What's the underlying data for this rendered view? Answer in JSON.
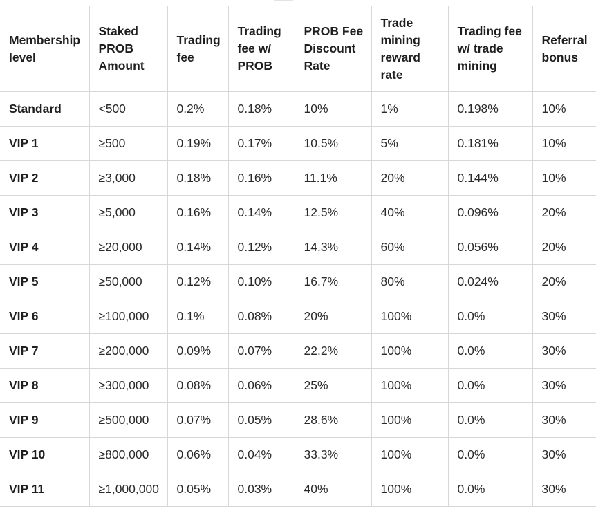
{
  "table": {
    "headers": [
      "Membership level",
      "Staked PROB Amount",
      "Trading fee",
      "Trading fee w/ PROB",
      "PROB Fee Discount Rate",
      "Trade mining reward rate",
      "Trading fee w/ trade mining",
      "Referral bonus"
    ],
    "rows": [
      [
        "Standard",
        "<500",
        "0.2%",
        "0.18%",
        "10%",
        "1%",
        "0.198%",
        "10%"
      ],
      [
        "VIP 1",
        "≥500",
        "0.19%",
        "0.17%",
        "10.5%",
        "5%",
        "0.181%",
        "10%"
      ],
      [
        "VIP 2",
        "≥3,000",
        "0.18%",
        "0.16%",
        "11.1%",
        "20%",
        "0.144%",
        "10%"
      ],
      [
        "VIP 3",
        "≥5,000",
        "0.16%",
        "0.14%",
        "12.5%",
        "40%",
        "0.096%",
        "20%"
      ],
      [
        "VIP 4",
        "≥20,000",
        "0.14%",
        "0.12%",
        "14.3%",
        "60%",
        "0.056%",
        "20%"
      ],
      [
        "VIP 5",
        "≥50,000",
        "0.12%",
        "0.10%",
        "16.7%",
        "80%",
        "0.024%",
        "20%"
      ],
      [
        "VIP 6",
        "≥100,000",
        "0.1%",
        "0.08%",
        "20%",
        "100%",
        "0.0%",
        "30%"
      ],
      [
        "VIP 7",
        "≥200,000",
        "0.09%",
        "0.07%",
        "22.2%",
        "100%",
        "0.0%",
        "30%"
      ],
      [
        "VIP 8",
        "≥300,000",
        "0.08%",
        "0.06%",
        "25%",
        "100%",
        "0.0%",
        "30%"
      ],
      [
        "VIP 9",
        "≥500,000",
        "0.07%",
        "0.05%",
        "28.6%",
        "100%",
        "0.0%",
        "30%"
      ],
      [
        "VIP 10",
        "≥800,000",
        "0.06%",
        "0.04%",
        "33.3%",
        "100%",
        "0.0%",
        "30%"
      ],
      [
        "VIP 11",
        "≥1,000,000",
        "0.05%",
        "0.03%",
        "40%",
        "100%",
        "0.0%",
        "30%"
      ]
    ]
  }
}
